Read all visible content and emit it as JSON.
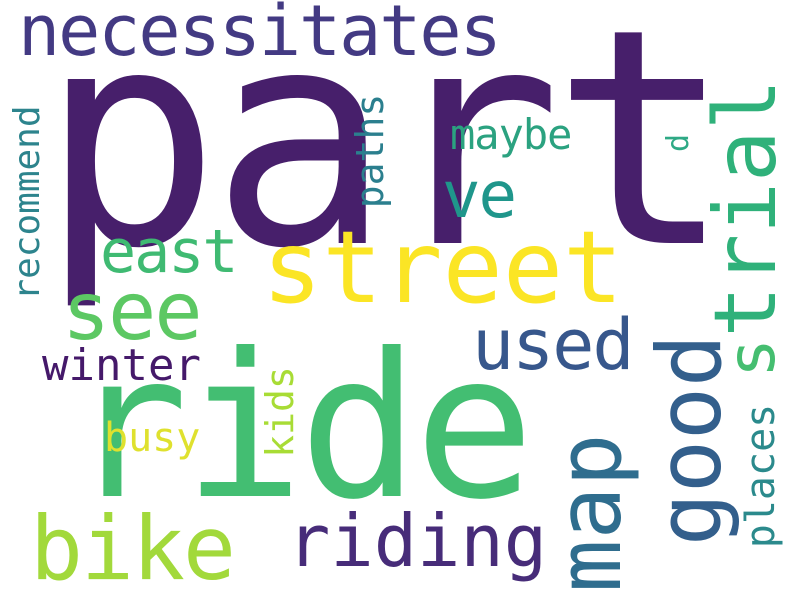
{
  "words": {
    "part": "part",
    "ride": "ride",
    "street": "street",
    "necessitates": "necessitates",
    "trial": "trial",
    "good": "good",
    "map": "map",
    "bike": "bike",
    "riding": "riding",
    "see": "see",
    "used": "used",
    "east": "east",
    "ve": "ve",
    "maybe": "maybe",
    "paths": "paths",
    "recommend": "recommend",
    "winter": "winter",
    "busy": "busy",
    "kids": "kids",
    "places": "places",
    "s": "s",
    "d": "d"
  },
  "colors": {
    "part": "#471f6b",
    "ride": "#43be72",
    "street": "#fbe525",
    "necessitates": "#433a83",
    "trial": "#2fb17a",
    "good": "#335f8c",
    "map": "#2f6d8e",
    "bike": "#a2d93b",
    "riding": "#472c79",
    "see": "#5cc863",
    "used": "#37578c",
    "east": "#3fba72",
    "ve": "#1f968b",
    "maybe": "#2ba280",
    "paths": "#2b7f8e",
    "recommend": "#2d848d",
    "winter": "#45196a",
    "busy": "#dfe12e",
    "kids": "#a8dc35",
    "places": "#2b8a8c",
    "s": "#45be70",
    "d": "#2ea985"
  }
}
